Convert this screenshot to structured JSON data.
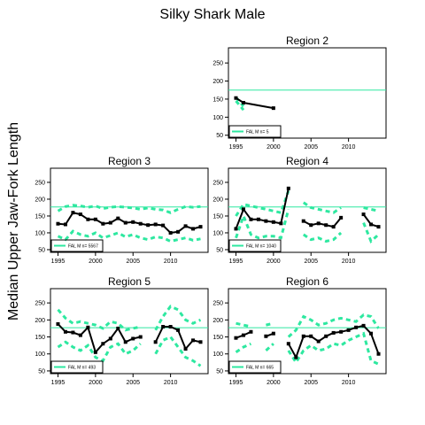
{
  "title": "Silky Shark Male",
  "ylabel": "Median Upper Jaw-Fork Length",
  "colors": {
    "line": "#000000",
    "reference": "#2EE8A0",
    "ci": "#2EE8A0"
  },
  "chart_data": [
    {
      "type": "line",
      "title": "Region 2",
      "legend": "FAL M n= 5",
      "reference": 175,
      "xlim": [
        1994,
        2015
      ],
      "ylim": [
        42,
        292
      ],
      "xticks": [
        1995,
        2000,
        2005,
        2010
      ],
      "yticks": [
        50,
        100,
        150,
        200,
        250
      ],
      "median": [
        [
          1995,
          153
        ],
        [
          1996,
          140
        ],
        [
          2000,
          125
        ]
      ],
      "upper": [
        [
          1995,
          155
        ],
        [
          1996,
          130
        ]
      ],
      "lower": [
        [
          1995,
          145
        ],
        [
          1996,
          120
        ]
      ]
    },
    {
      "type": "line",
      "title": "Region 3",
      "legend": "FAL M n= 5567",
      "reference": 177,
      "xlim": [
        1994,
        2015
      ],
      "ylim": [
        42,
        292
      ],
      "xticks": [
        1995,
        2000,
        2005,
        2010
      ],
      "yticks": [
        50,
        100,
        150,
        200,
        250
      ],
      "median": [
        [
          1995,
          127
        ],
        [
          1996,
          125
        ],
        [
          1997,
          160
        ],
        [
          1998,
          155
        ],
        [
          1999,
          140
        ],
        [
          2000,
          140
        ],
        [
          2001,
          127
        ],
        [
          2002,
          130
        ],
        [
          2003,
          143
        ],
        [
          2004,
          130
        ],
        [
          2005,
          132
        ],
        [
          2006,
          127
        ],
        [
          2007,
          123
        ],
        [
          2008,
          125
        ],
        [
          2009,
          122
        ],
        [
          2010,
          100
        ],
        [
          2011,
          103
        ],
        [
          2012,
          120
        ],
        [
          2013,
          112
        ],
        [
          2014,
          118
        ]
      ],
      "upper": [
        [
          1995,
          165
        ],
        [
          1996,
          178
        ],
        [
          1997,
          182
        ],
        [
          1998,
          180
        ],
        [
          1999,
          176
        ],
        [
          2000,
          180
        ],
        [
          2001,
          172
        ],
        [
          2002,
          176
        ],
        [
          2003,
          178
        ],
        [
          2004,
          176
        ],
        [
          2005,
          174
        ],
        [
          2006,
          170
        ],
        [
          2007,
          174
        ],
        [
          2008,
          170
        ],
        [
          2009,
          168
        ],
        [
          2010,
          160
        ],
        [
          2011,
          170
        ],
        [
          2012,
          178
        ],
        [
          2013,
          176
        ],
        [
          2014,
          178
        ]
      ],
      "lower": [
        [
          1995,
          90
        ],
        [
          1996,
          80
        ],
        [
          1997,
          105
        ],
        [
          1998,
          95
        ],
        [
          1999,
          90
        ],
        [
          2000,
          100
        ],
        [
          2001,
          85
        ],
        [
          2002,
          92
        ],
        [
          2003,
          100
        ],
        [
          2004,
          88
        ],
        [
          2005,
          95
        ],
        [
          2006,
          85
        ],
        [
          2007,
          80
        ],
        [
          2008,
          88
        ],
        [
          2009,
          85
        ],
        [
          2010,
          75
        ],
        [
          2011,
          80
        ],
        [
          2012,
          85
        ],
        [
          2013,
          78
        ],
        [
          2014,
          82
        ]
      ]
    },
    {
      "type": "line",
      "title": "Region 4",
      "legend": "FAL M n= 1040",
      "reference": 177,
      "xlim": [
        1994,
        2015
      ],
      "ylim": [
        42,
        292
      ],
      "xticks": [
        1995,
        2000,
        2005,
        2010
      ],
      "yticks": [
        50,
        100,
        150,
        200,
        250
      ],
      "median": [
        [
          1995,
          112
        ],
        [
          1996,
          170
        ],
        [
          1997,
          140
        ],
        [
          1998,
          140
        ],
        [
          1999,
          135
        ],
        [
          2000,
          132
        ],
        [
          2001,
          128
        ],
        [
          2002,
          232
        ],
        null,
        [
          2004,
          135
        ],
        [
          2005,
          123
        ],
        [
          2006,
          128
        ],
        [
          2007,
          123
        ],
        [
          2008,
          118
        ],
        [
          2009,
          145
        ],
        null,
        null,
        [
          2012,
          155
        ],
        [
          2013,
          125
        ],
        [
          2014,
          118
        ]
      ],
      "upper": [
        [
          1995,
          150
        ],
        [
          1996,
          185
        ],
        [
          1997,
          180
        ],
        [
          1998,
          175
        ],
        [
          1999,
          170
        ],
        [
          2000,
          165
        ],
        [
          2001,
          160
        ],
        [
          2002,
          225
        ],
        null,
        [
          2004,
          190
        ],
        [
          2005,
          175
        ],
        [
          2006,
          170
        ],
        [
          2007,
          165
        ],
        [
          2008,
          160
        ],
        [
          2009,
          175
        ],
        null,
        null,
        [
          2012,
          175
        ],
        [
          2013,
          170
        ],
        [
          2014,
          165
        ]
      ],
      "lower": [
        [
          1995,
          85
        ],
        [
          1996,
          150
        ],
        [
          1997,
          95
        ],
        [
          1998,
          85
        ],
        [
          1999,
          90
        ],
        [
          2000,
          90
        ],
        [
          2001,
          85
        ],
        [
          2002,
          170
        ],
        null,
        [
          2004,
          95
        ],
        [
          2005,
          80
        ],
        [
          2006,
          85
        ],
        [
          2007,
          75
        ],
        [
          2008,
          80
        ],
        [
          2009,
          100
        ],
        null,
        null,
        [
          2012,
          130
        ],
        [
          2013,
          75
        ],
        [
          2014,
          95
        ]
      ]
    },
    {
      "type": "line",
      "title": "Region 5",
      "legend": "FAL M n= 493",
      "reference": 177,
      "xlim": [
        1994,
        2015
      ],
      "ylim": [
        42,
        292
      ],
      "xticks": [
        1995,
        2000,
        2005,
        2010
      ],
      "yticks": [
        50,
        100,
        150,
        200,
        250
      ],
      "median": [
        [
          1995,
          188
        ],
        [
          1996,
          165
        ],
        [
          1997,
          163
        ],
        [
          1998,
          155
        ],
        [
          1999,
          178
        ],
        [
          2000,
          105
        ],
        [
          2001,
          130
        ],
        [
          2002,
          145
        ],
        [
          2003,
          175
        ],
        [
          2004,
          135
        ],
        [
          2005,
          145
        ],
        [
          2006,
          150
        ],
        null,
        [
          2008,
          135
        ],
        [
          2009,
          180
        ],
        [
          2010,
          180
        ],
        [
          2011,
          170
        ],
        [
          2012,
          115
        ],
        [
          2013,
          140
        ],
        [
          2014,
          135
        ]
      ],
      "upper": [
        [
          1995,
          230
        ],
        [
          1996,
          205
        ],
        [
          1997,
          190
        ],
        [
          1998,
          195
        ],
        [
          1999,
          190
        ],
        [
          2000,
          185
        ],
        [
          2001,
          175
        ],
        [
          2002,
          195
        ],
        [
          2003,
          190
        ],
        [
          2004,
          170
        ],
        [
          2005,
          175
        ],
        [
          2006,
          180
        ],
        null,
        [
          2008,
          170
        ],
        [
          2009,
          210
        ],
        [
          2010,
          240
        ],
        [
          2011,
          230
        ],
        [
          2012,
          200
        ],
        [
          2013,
          190
        ],
        [
          2014,
          200
        ]
      ],
      "lower": [
        [
          1995,
          120
        ],
        [
          1996,
          135
        ],
        [
          1997,
          120
        ],
        [
          1998,
          110
        ],
        [
          1999,
          125
        ],
        [
          2000,
          90
        ],
        [
          2001,
          80
        ],
        [
          2002,
          120
        ],
        [
          2003,
          130
        ],
        [
          2004,
          100
        ],
        [
          2005,
          110
        ],
        [
          2006,
          130
        ],
        null,
        [
          2008,
          100
        ],
        [
          2009,
          140
        ],
        [
          2010,
          150
        ],
        [
          2011,
          120
        ],
        [
          2012,
          90
        ],
        [
          2013,
          80
        ],
        [
          2014,
          65
        ]
      ]
    },
    {
      "type": "line",
      "title": "Region 6",
      "legend": "FAL M n= 665",
      "reference": 177,
      "xlim": [
        1994,
        2015
      ],
      "ylim": [
        42,
        292
      ],
      "xticks": [
        1995,
        2000,
        2005,
        2010
      ],
      "yticks": [
        50,
        100,
        150,
        200,
        250
      ],
      "median": [
        [
          1995,
          147
        ],
        [
          1996,
          155
        ],
        [
          1997,
          165
        ],
        null,
        [
          1999,
          152
        ],
        [
          2000,
          160
        ],
        null,
        [
          2002,
          130
        ],
        [
          2003,
          90
        ],
        [
          2004,
          152
        ],
        [
          2005,
          152
        ],
        [
          2006,
          137
        ],
        [
          2007,
          152
        ],
        [
          2008,
          162
        ],
        [
          2009,
          165
        ],
        [
          2010,
          170
        ],
        [
          2011,
          178
        ],
        [
          2012,
          183
        ],
        [
          2013,
          160
        ],
        [
          2014,
          100
        ]
      ],
      "upper": [
        [
          1995,
          190
        ],
        [
          1996,
          185
        ],
        [
          1997,
          180
        ],
        null,
        [
          1999,
          185
        ],
        [
          2000,
          190
        ],
        null,
        [
          2002,
          150
        ],
        [
          2003,
          170
        ],
        [
          2004,
          210
        ],
        [
          2005,
          200
        ],
        [
          2006,
          185
        ],
        [
          2007,
          190
        ],
        [
          2008,
          200
        ],
        [
          2009,
          205
        ],
        [
          2010,
          200
        ],
        [
          2011,
          195
        ],
        [
          2012,
          215
        ],
        [
          2013,
          210
        ],
        [
          2014,
          175
        ]
      ],
      "lower": [
        [
          1995,
          105
        ],
        [
          1996,
          120
        ],
        [
          1997,
          130
        ],
        null,
        [
          1999,
          110
        ],
        [
          2000,
          130
        ],
        null,
        [
          2002,
          110
        ],
        [
          2003,
          75
        ],
        [
          2004,
          110
        ],
        [
          2005,
          125
        ],
        [
          2006,
          110
        ],
        [
          2007,
          115
        ],
        [
          2008,
          130
        ],
        [
          2009,
          125
        ],
        [
          2010,
          140
        ],
        [
          2011,
          150
        ],
        [
          2012,
          160
        ],
        [
          2013,
          80
        ],
        [
          2014,
          70
        ]
      ]
    }
  ]
}
